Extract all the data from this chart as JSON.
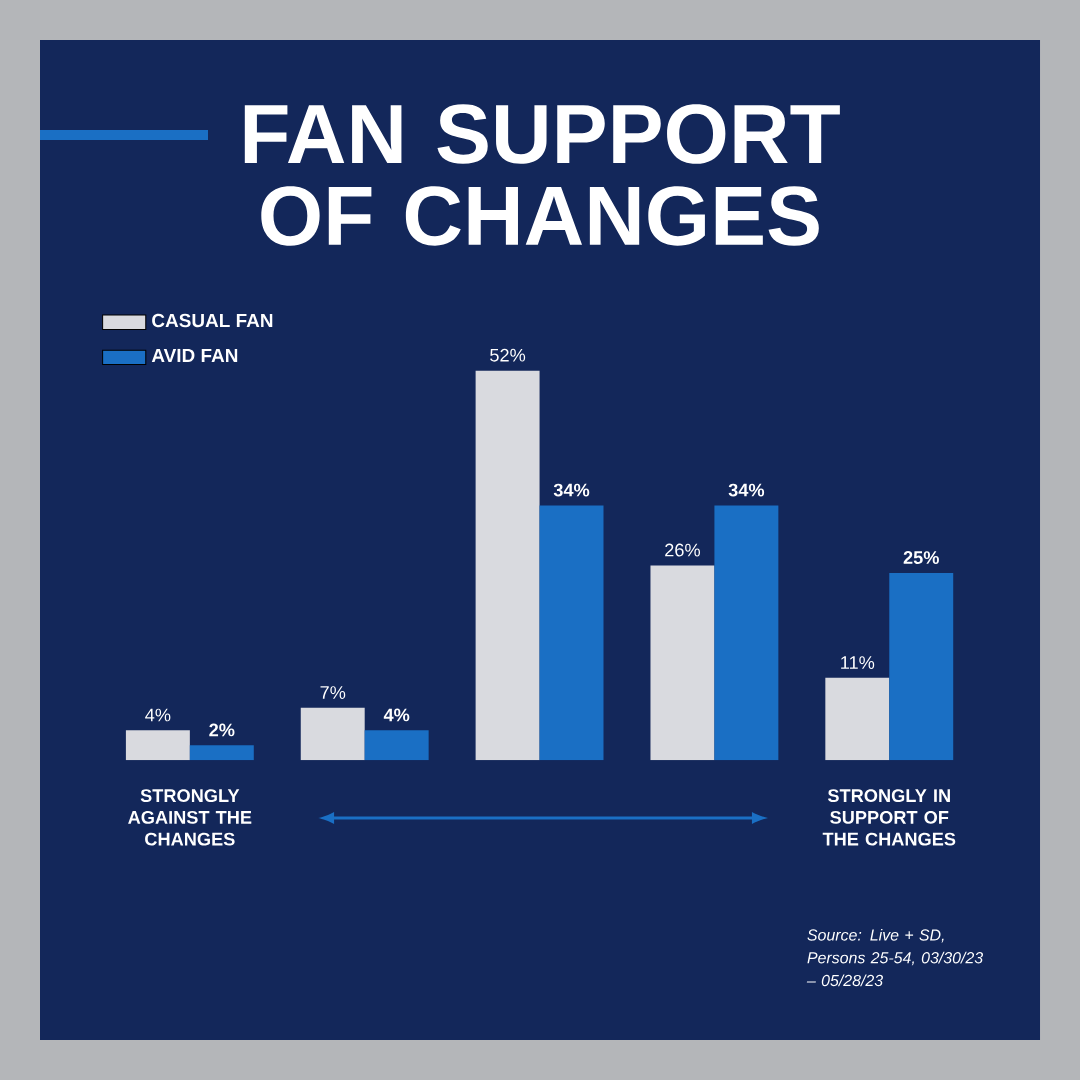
{
  "chart_data": {
    "type": "bar",
    "title": "FAN SUPPORT OF CHANGES",
    "categories": [
      "STRONGLY AGAINST THE CHANGES",
      null,
      null,
      null,
      "STRONGLY IN SUPPORT OF THE CHANGES"
    ],
    "series": [
      {
        "name": "CASUAL FAN",
        "color": "#d9dadf",
        "values": [
          4,
          7,
          52,
          26,
          11
        ],
        "value_labels": [
          "4%",
          "7%",
          "52%",
          "26%",
          "11%"
        ]
      },
      {
        "name": "AVID FAN",
        "color": "#1a6fc4",
        "values": [
          2,
          4,
          34,
          34,
          25
        ],
        "value_labels": [
          "2%",
          "4%",
          "34%",
          "34%",
          "25%"
        ]
      }
    ],
    "legend": "top left",
    "tick_labels": "x",
    "annotations": [
      "Source: Live + SD, Persons 25-54, 03/30/23 – 05/28/23"
    ]
  }
}
